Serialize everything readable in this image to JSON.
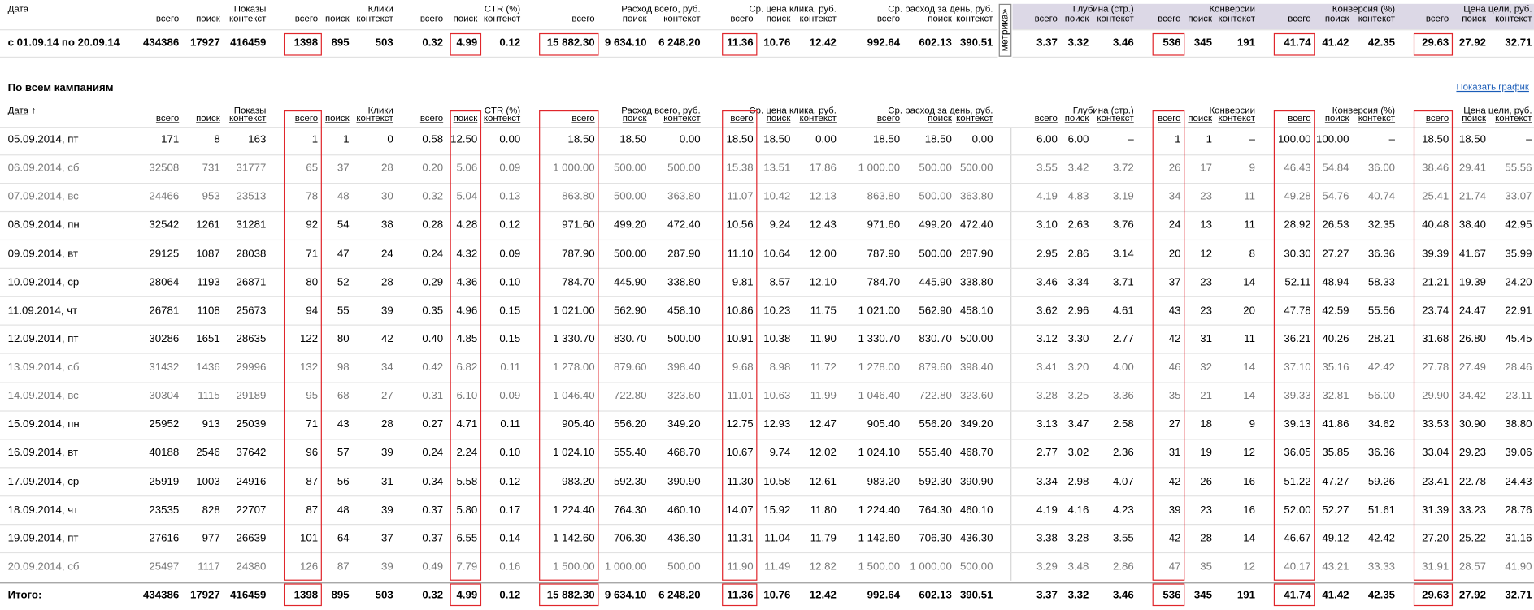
{
  "column_groups": [
    {
      "title": "Показы",
      "columns": [
        "всего",
        "поиск",
        "контекст"
      ]
    },
    {
      "title": "Клики",
      "columns": [
        "всего",
        "поиск",
        "контекст"
      ]
    },
    {
      "title": "CTR (%)",
      "columns": [
        "всего",
        "поиск",
        "контекст"
      ]
    },
    {
      "title": "Расход всего, руб.",
      "columns": [
        "всего",
        "поиск",
        "контекст"
      ]
    },
    {
      "title": "Ср. цена клика, руб.",
      "columns": [
        "всего",
        "поиск",
        "контекст"
      ]
    },
    {
      "title": "Ср. расход за день, руб.",
      "columns": [
        "всего",
        "поиск",
        "контекст"
      ]
    },
    {
      "title": "Глубина (стр.)",
      "columns": [
        "всего",
        "поиск",
        "контекст"
      ]
    },
    {
      "title": "Конверсии",
      "columns": [
        "всего",
        "поиск",
        "контекст"
      ]
    },
    {
      "title": "Конверсия (%)",
      "columns": [
        "всего",
        "поиск",
        "контекст"
      ]
    },
    {
      "title": "Цена цели, руб.",
      "columns": [
        "всего",
        "поиск",
        "контекст"
      ]
    }
  ],
  "summary_table": {
    "date_header": "Дата",
    "metrika_label": "метрика",
    "metrika_toggle": "»",
    "row": [
      "с 01.09.14 по 20.09.14",
      "434386",
      "17927",
      "416459",
      "1398",
      "895",
      "503",
      "0.32",
      "4.99",
      "0.12",
      "15 882.30",
      "9 634.10",
      "6 248.20",
      "11.36",
      "10.76",
      "12.42",
      "992.64",
      "602.13",
      "390.51",
      "3.37",
      "3.32",
      "3.46",
      "536",
      "345",
      "191",
      "41.74",
      "41.42",
      "42.35",
      "29.63",
      "27.92",
      "32.71"
    ]
  },
  "campaigns": {
    "title": "По всем кампаниям",
    "chart_link": "Показать график",
    "date_header": "Дата",
    "sort_indicator": "↑",
    "rows": [
      [
        "05.09.2014, пт",
        "171",
        "8",
        "163",
        "1",
        "1",
        "0",
        "0.58",
        "12.50",
        "0.00",
        "18.50",
        "18.50",
        "0.00",
        "18.50",
        "18.50",
        "0.00",
        "18.50",
        "18.50",
        "0.00",
        "6.00",
        "6.00",
        "–",
        "1",
        "1",
        "–",
        "100.00",
        "100.00",
        "–",
        "18.50",
        "18.50",
        "–"
      ],
      [
        "06.09.2014, сб",
        "32508",
        "731",
        "31777",
        "65",
        "37",
        "28",
        "0.20",
        "5.06",
        "0.09",
        "1 000.00",
        "500.00",
        "500.00",
        "15.38",
        "13.51",
        "17.86",
        "1 000.00",
        "500.00",
        "500.00",
        "3.55",
        "3.42",
        "3.72",
        "26",
        "17",
        "9",
        "46.43",
        "54.84",
        "36.00",
        "38.46",
        "29.41",
        "55.56"
      ],
      [
        "07.09.2014, вс",
        "24466",
        "953",
        "23513",
        "78",
        "48",
        "30",
        "0.32",
        "5.04",
        "0.13",
        "863.80",
        "500.00",
        "363.80",
        "11.07",
        "10.42",
        "12.13",
        "863.80",
        "500.00",
        "363.80",
        "4.19",
        "4.83",
        "3.19",
        "34",
        "23",
        "11",
        "49.28",
        "54.76",
        "40.74",
        "25.41",
        "21.74",
        "33.07"
      ],
      [
        "08.09.2014, пн",
        "32542",
        "1261",
        "31281",
        "92",
        "54",
        "38",
        "0.28",
        "4.28",
        "0.12",
        "971.60",
        "499.20",
        "472.40",
        "10.56",
        "9.24",
        "12.43",
        "971.60",
        "499.20",
        "472.40",
        "3.10",
        "2.63",
        "3.76",
        "24",
        "13",
        "11",
        "28.92",
        "26.53",
        "32.35",
        "40.48",
        "38.40",
        "42.95"
      ],
      [
        "09.09.2014, вт",
        "29125",
        "1087",
        "28038",
        "71",
        "47",
        "24",
        "0.24",
        "4.32",
        "0.09",
        "787.90",
        "500.00",
        "287.90",
        "11.10",
        "10.64",
        "12.00",
        "787.90",
        "500.00",
        "287.90",
        "2.95",
        "2.86",
        "3.14",
        "20",
        "12",
        "8",
        "30.30",
        "27.27",
        "36.36",
        "39.39",
        "41.67",
        "35.99"
      ],
      [
        "10.09.2014, ср",
        "28064",
        "1193",
        "26871",
        "80",
        "52",
        "28",
        "0.29",
        "4.36",
        "0.10",
        "784.70",
        "445.90",
        "338.80",
        "9.81",
        "8.57",
        "12.10",
        "784.70",
        "445.90",
        "338.80",
        "3.46",
        "3.34",
        "3.71",
        "37",
        "23",
        "14",
        "52.11",
        "48.94",
        "58.33",
        "21.21",
        "19.39",
        "24.20"
      ],
      [
        "11.09.2014, чт",
        "26781",
        "1108",
        "25673",
        "94",
        "55",
        "39",
        "0.35",
        "4.96",
        "0.15",
        "1 021.00",
        "562.90",
        "458.10",
        "10.86",
        "10.23",
        "11.75",
        "1 021.00",
        "562.90",
        "458.10",
        "3.62",
        "2.96",
        "4.61",
        "43",
        "23",
        "20",
        "47.78",
        "42.59",
        "55.56",
        "23.74",
        "24.47",
        "22.91"
      ],
      [
        "12.09.2014, пт",
        "30286",
        "1651",
        "28635",
        "122",
        "80",
        "42",
        "0.40",
        "4.85",
        "0.15",
        "1 330.70",
        "830.70",
        "500.00",
        "10.91",
        "10.38",
        "11.90",
        "1 330.70",
        "830.70",
        "500.00",
        "3.12",
        "3.30",
        "2.77",
        "42",
        "31",
        "11",
        "36.21",
        "40.26",
        "28.21",
        "31.68",
        "26.80",
        "45.45"
      ],
      [
        "13.09.2014, сб",
        "31432",
        "1436",
        "29996",
        "132",
        "98",
        "34",
        "0.42",
        "6.82",
        "0.11",
        "1 278.00",
        "879.60",
        "398.40",
        "9.68",
        "8.98",
        "11.72",
        "1 278.00",
        "879.60",
        "398.40",
        "3.41",
        "3.20",
        "4.00",
        "46",
        "32",
        "14",
        "37.10",
        "35.16",
        "42.42",
        "27.78",
        "27.49",
        "28.46"
      ],
      [
        "14.09.2014, вс",
        "30304",
        "1115",
        "29189",
        "95",
        "68",
        "27",
        "0.31",
        "6.10",
        "0.09",
        "1 046.40",
        "722.80",
        "323.60",
        "11.01",
        "10.63",
        "11.99",
        "1 046.40",
        "722.80",
        "323.60",
        "3.28",
        "3.25",
        "3.36",
        "35",
        "21",
        "14",
        "39.33",
        "32.81",
        "56.00",
        "29.90",
        "34.42",
        "23.11"
      ],
      [
        "15.09.2014, пн",
        "25952",
        "913",
        "25039",
        "71",
        "43",
        "28",
        "0.27",
        "4.71",
        "0.11",
        "905.40",
        "556.20",
        "349.20",
        "12.75",
        "12.93",
        "12.47",
        "905.40",
        "556.20",
        "349.20",
        "3.13",
        "3.47",
        "2.58",
        "27",
        "18",
        "9",
        "39.13",
        "41.86",
        "34.62",
        "33.53",
        "30.90",
        "38.80"
      ],
      [
        "16.09.2014, вт",
        "40188",
        "2546",
        "37642",
        "96",
        "57",
        "39",
        "0.24",
        "2.24",
        "0.10",
        "1 024.10",
        "555.40",
        "468.70",
        "10.67",
        "9.74",
        "12.02",
        "1 024.10",
        "555.40",
        "468.70",
        "2.77",
        "3.02",
        "2.36",
        "31",
        "19",
        "12",
        "36.05",
        "35.85",
        "36.36",
        "33.04",
        "29.23",
        "39.06"
      ],
      [
        "17.09.2014, ср",
        "25919",
        "1003",
        "24916",
        "87",
        "56",
        "31",
        "0.34",
        "5.58",
        "0.12",
        "983.20",
        "592.30",
        "390.90",
        "11.30",
        "10.58",
        "12.61",
        "983.20",
        "592.30",
        "390.90",
        "3.34",
        "2.98",
        "4.07",
        "42",
        "26",
        "16",
        "51.22",
        "47.27",
        "59.26",
        "23.41",
        "22.78",
        "24.43"
      ],
      [
        "18.09.2014, чт",
        "23535",
        "828",
        "22707",
        "87",
        "48",
        "39",
        "0.37",
        "5.80",
        "0.17",
        "1 224.40",
        "764.30",
        "460.10",
        "14.07",
        "15.92",
        "11.80",
        "1 224.40",
        "764.30",
        "460.10",
        "4.19",
        "4.16",
        "4.23",
        "39",
        "23",
        "16",
        "52.00",
        "52.27",
        "51.61",
        "31.39",
        "33.23",
        "28.76"
      ],
      [
        "19.09.2014, пт",
        "27616",
        "977",
        "26639",
        "101",
        "64",
        "37",
        "0.37",
        "6.55",
        "0.14",
        "1 142.60",
        "706.30",
        "436.30",
        "11.31",
        "11.04",
        "11.79",
        "1 142.60",
        "706.30",
        "436.30",
        "3.38",
        "3.28",
        "3.55",
        "42",
        "28",
        "14",
        "46.67",
        "49.12",
        "42.42",
        "27.20",
        "25.22",
        "31.16"
      ],
      [
        "20.09.2014, сб",
        "25497",
        "1117",
        "24380",
        "126",
        "87",
        "39",
        "0.49",
        "7.79",
        "0.16",
        "1 500.00",
        "1 000.00",
        "500.00",
        "11.90",
        "11.49",
        "12.82",
        "1 500.00",
        "1 000.00",
        "500.00",
        "3.29",
        "3.48",
        "2.86",
        "47",
        "35",
        "12",
        "40.17",
        "43.21",
        "33.33",
        "31.91",
        "28.57",
        "41.90"
      ]
    ],
    "total": [
      "Итого:",
      "434386",
      "17927",
      "416459",
      "1398",
      "895",
      "503",
      "0.32",
      "4.99",
      "0.12",
      "15 882.30",
      "9 634.10",
      "6 248.20",
      "11.36",
      "10.76",
      "12.42",
      "992.64",
      "602.13",
      "390.51",
      "3.37",
      "3.32",
      "3.46",
      "536",
      "345",
      "191",
      "41.74",
      "41.42",
      "42.35",
      "29.63",
      "27.92",
      "32.71"
    ]
  }
}
